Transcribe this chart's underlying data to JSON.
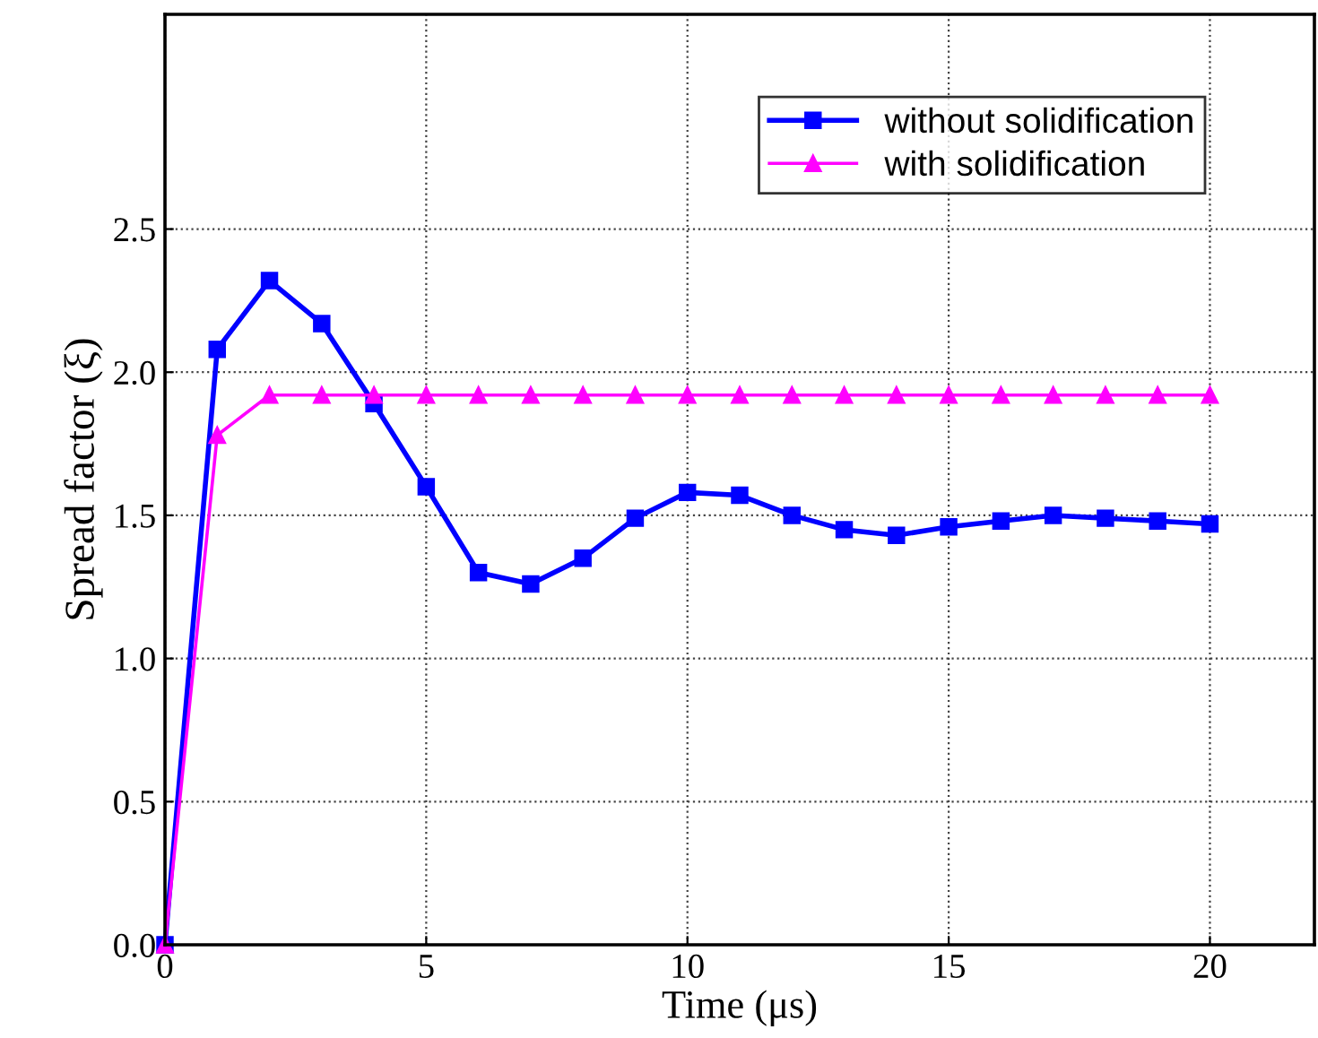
{
  "chart_data": {
    "type": "line",
    "xlabel": "Time (μs)",
    "ylabel": "Spread factor (ξ)",
    "x": [
      0,
      1,
      2,
      3,
      4,
      5,
      6,
      7,
      8,
      9,
      10,
      11,
      12,
      13,
      14,
      15,
      16,
      17,
      18,
      19,
      20
    ],
    "series": [
      {
        "name": "without solidification",
        "color": "#0000ff",
        "marker": "square",
        "values": [
          0,
          2.08,
          2.32,
          2.17,
          1.89,
          1.6,
          1.3,
          1.26,
          1.35,
          1.49,
          1.58,
          1.57,
          1.5,
          1.45,
          1.43,
          1.46,
          1.48,
          1.5,
          1.49,
          1.48,
          1.47
        ]
      },
      {
        "name": "with solidification",
        "color": "#ff00ff",
        "marker": "triangle",
        "values": [
          0,
          1.78,
          1.92,
          1.92,
          1.92,
          1.92,
          1.92,
          1.92,
          1.92,
          1.92,
          1.92,
          1.92,
          1.92,
          1.92,
          1.92,
          1.92,
          1.92,
          1.92,
          1.92,
          1.92,
          1.92
        ]
      }
    ],
    "xlim": [
      0,
      22
    ],
    "xticks": [
      0,
      5,
      10,
      15,
      20
    ],
    "ylim": [
      0,
      3.25
    ],
    "yticks": [
      {
        "value": 0,
        "label": "0.0"
      },
      {
        "value": 0.5,
        "label": "0.5"
      },
      {
        "value": 1,
        "label": "1.0"
      },
      {
        "value": 1.5,
        "label": "1.5"
      },
      {
        "value": 2,
        "label": "2.0"
      },
      {
        "value": 2.5,
        "label": "2.5"
      }
    ],
    "grid": true,
    "legend": "top right",
    "line_style": "solid"
  }
}
